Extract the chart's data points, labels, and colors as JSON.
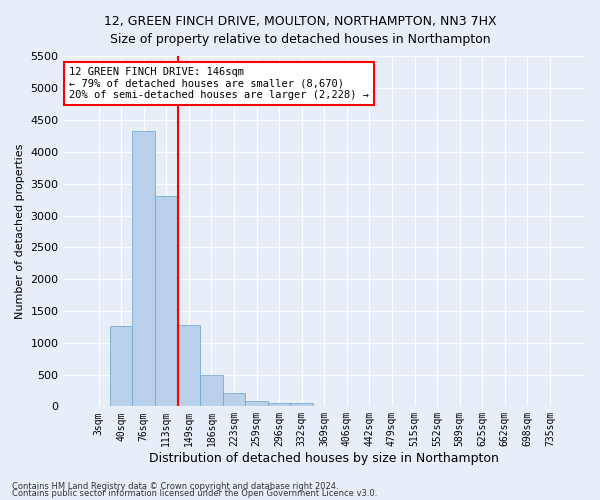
{
  "title1": "12, GREEN FINCH DRIVE, MOULTON, NORTHAMPTON, NN3 7HX",
  "title2": "Size of property relative to detached houses in Northampton",
  "xlabel": "Distribution of detached houses by size in Northampton",
  "ylabel": "Number of detached properties",
  "bar_labels": [
    "3sqm",
    "40sqm",
    "76sqm",
    "113sqm",
    "149sqm",
    "186sqm",
    "223sqm",
    "259sqm",
    "296sqm",
    "332sqm",
    "369sqm",
    "406sqm",
    "442sqm",
    "479sqm",
    "515sqm",
    "552sqm",
    "589sqm",
    "625sqm",
    "662sqm",
    "698sqm",
    "735sqm"
  ],
  "bar_values": [
    0,
    1270,
    4330,
    3300,
    1280,
    490,
    215,
    90,
    60,
    55,
    0,
    0,
    0,
    0,
    0,
    0,
    0,
    0,
    0,
    0,
    0
  ],
  "bar_color": "#b8d0ea",
  "bar_edgecolor": "#6aa3cc",
  "vline_color": "red",
  "vline_x_index": 3,
  "ylim_max": 5500,
  "yticks": [
    0,
    500,
    1000,
    1500,
    2000,
    2500,
    3000,
    3500,
    4000,
    4500,
    5000,
    5500
  ],
  "annotation_title": "12 GREEN FINCH DRIVE: 146sqm",
  "annotation_line1": "← 79% of detached houses are smaller (8,670)",
  "annotation_line2": "20% of semi-detached houses are larger (2,228) →",
  "annotation_box_color": "white",
  "annotation_box_edgecolor": "red",
  "footnote1": "Contains HM Land Registry data © Crown copyright and database right 2024.",
  "footnote2": "Contains public sector information licensed under the Open Government Licence v3.0.",
  "background_color": "#e8eef8",
  "grid_color": "white",
  "title_fontsize": 9,
  "subtitle_fontsize": 9
}
